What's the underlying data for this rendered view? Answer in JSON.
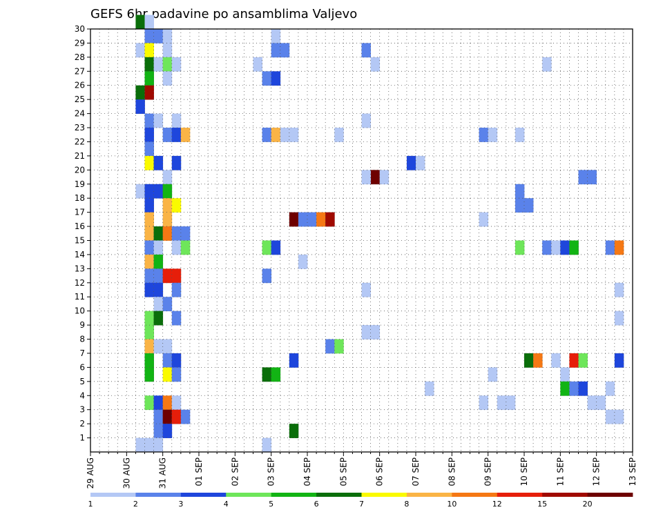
{
  "chart_data": {
    "type": "heatmap",
    "title": "GEFS 6hr padavine po ansamblima Valjevo",
    "x_ticks": [
      "29 AUG",
      "30 AUG",
      "31 AUG",
      "01 SEP",
      "02 SEP",
      "03 SEP",
      "04 SEP",
      "05 SEP",
      "06 SEP",
      "07 SEP",
      "08 SEP",
      "09 SEP",
      "10 SEP",
      "11 SEP",
      "12 SEP",
      "13 SEP"
    ],
    "y_ticks": [
      "1",
      "2",
      "3",
      "4",
      "5",
      "6",
      "7",
      "8",
      "9",
      "10",
      "11",
      "12",
      "13",
      "14",
      "15",
      "16",
      "17",
      "18",
      "19",
      "20",
      "21",
      "22",
      "23",
      "24",
      "25",
      "26",
      "27",
      "28",
      "29",
      "30"
    ],
    "xlim": [
      0,
      60
    ],
    "ylim": [
      0,
      30
    ],
    "grid": true,
    "colorbar": {
      "labels": [
        "1",
        "2",
        "3",
        "4",
        "5",
        "6",
        "7",
        "8",
        "10",
        "12",
        "15",
        "20"
      ],
      "colors": [
        "#b4c8f5",
        "#5a82ea",
        "#1e46dc",
        "#6ee65a",
        "#12b414",
        "#0a6e0a",
        "#fafa00",
        "#fab446",
        "#f57814",
        "#e61e0a",
        "#a00a00",
        "#6e0000"
      ]
    },
    "cells_note": "step index (6h steps from 29 AUG 00z), member, colour class index",
    "cells": [
      [
        5,
        30,
        6
      ],
      [
        6,
        30,
        1
      ],
      [
        6,
        29,
        2
      ],
      [
        7,
        29,
        2
      ],
      [
        8,
        29,
        1
      ],
      [
        5,
        28,
        1
      ],
      [
        6,
        28,
        7
      ],
      [
        8,
        28,
        1
      ],
      [
        6,
        27,
        6
      ],
      [
        7,
        27,
        1
      ],
      [
        8,
        27,
        4
      ],
      [
        9,
        27,
        1
      ],
      [
        6,
        26,
        5
      ],
      [
        8,
        26,
        1
      ],
      [
        5,
        25,
        6
      ],
      [
        6,
        25,
        11
      ],
      [
        5,
        24,
        3
      ],
      [
        6,
        23,
        2
      ],
      [
        7,
        23,
        1
      ],
      [
        9,
        23,
        1
      ],
      [
        6,
        22,
        3
      ],
      [
        8,
        22,
        2
      ],
      [
        9,
        22,
        3
      ],
      [
        10,
        22,
        8
      ],
      [
        6,
        21,
        2
      ],
      [
        6,
        20,
        7
      ],
      [
        7,
        20,
        3
      ],
      [
        9,
        20,
        3
      ],
      [
        8,
        19,
        1
      ],
      [
        5,
        18,
        1
      ],
      [
        6,
        18,
        3
      ],
      [
        7,
        18,
        3
      ],
      [
        8,
        18,
        5
      ],
      [
        6,
        17,
        3
      ],
      [
        8,
        17,
        8
      ],
      [
        9,
        17,
        7
      ],
      [
        6,
        16,
        8
      ],
      [
        8,
        16,
        8
      ],
      [
        6,
        15,
        8
      ],
      [
        7,
        15,
        6
      ],
      [
        8,
        15,
        9
      ],
      [
        9,
        15,
        2
      ],
      [
        10,
        15,
        2
      ],
      [
        6,
        14,
        2
      ],
      [
        7,
        14,
        1
      ],
      [
        9,
        14,
        1
      ],
      [
        10,
        14,
        4
      ],
      [
        6,
        13,
        8
      ],
      [
        7,
        13,
        5
      ],
      [
        6,
        12,
        2
      ],
      [
        7,
        12,
        2
      ],
      [
        8,
        12,
        10
      ],
      [
        9,
        12,
        10
      ],
      [
        6,
        11,
        3
      ],
      [
        7,
        11,
        3
      ],
      [
        9,
        11,
        2
      ],
      [
        7,
        10,
        1
      ],
      [
        8,
        10,
        2
      ],
      [
        6,
        9,
        4
      ],
      [
        7,
        9,
        6
      ],
      [
        9,
        9,
        2
      ],
      [
        6,
        8,
        4
      ],
      [
        6,
        7,
        8
      ],
      [
        7,
        7,
        1
      ],
      [
        8,
        7,
        1
      ],
      [
        6,
        6,
        5
      ],
      [
        8,
        6,
        2
      ],
      [
        9,
        6,
        3
      ],
      [
        6,
        5,
        5
      ],
      [
        8,
        5,
        7
      ],
      [
        9,
        5,
        2
      ],
      [
        6,
        3,
        4
      ],
      [
        7,
        3,
        3
      ],
      [
        8,
        3,
        9
      ],
      [
        9,
        3,
        1
      ],
      [
        7,
        2,
        2
      ],
      [
        8,
        2,
        12
      ],
      [
        9,
        2,
        10
      ],
      [
        10,
        2,
        2
      ],
      [
        7,
        1,
        2
      ],
      [
        8,
        1,
        3
      ],
      [
        5,
        0,
        1
      ],
      [
        6,
        0,
        1
      ],
      [
        7,
        0,
        1
      ],
      [
        20,
        29,
        1
      ],
      [
        20,
        28,
        2
      ],
      [
        21,
        28,
        2
      ],
      [
        18,
        27,
        1
      ],
      [
        19,
        26,
        2
      ],
      [
        20,
        26,
        3
      ],
      [
        19,
        22,
        2
      ],
      [
        20,
        22,
        8
      ],
      [
        21,
        22,
        1
      ],
      [
        22,
        22,
        1
      ],
      [
        22,
        16,
        12
      ],
      [
        23,
        16,
        2
      ],
      [
        24,
        16,
        2
      ],
      [
        25,
        16,
        9
      ],
      [
        26,
        16,
        11
      ],
      [
        19,
        14,
        4
      ],
      [
        20,
        14,
        3
      ],
      [
        23,
        13,
        1
      ],
      [
        19,
        12,
        2
      ],
      [
        26,
        7,
        2
      ],
      [
        27,
        7,
        4
      ],
      [
        22,
        6,
        3
      ],
      [
        19,
        5,
        6
      ],
      [
        20,
        5,
        5
      ],
      [
        22,
        1,
        6
      ],
      [
        19,
        0,
        1
      ],
      [
        30,
        28,
        2
      ],
      [
        31,
        27,
        1
      ],
      [
        30,
        23,
        1
      ],
      [
        27,
        22,
        1
      ],
      [
        31,
        19,
        12
      ],
      [
        30,
        19,
        1
      ],
      [
        32,
        19,
        1
      ],
      [
        30,
        11,
        1
      ],
      [
        30,
        8,
        1
      ],
      [
        31,
        8,
        1
      ],
      [
        35,
        20,
        3
      ],
      [
        36,
        20,
        1
      ],
      [
        37,
        4,
        1
      ],
      [
        43,
        22,
        2
      ],
      [
        44,
        22,
        1
      ],
      [
        47,
        22,
        1
      ],
      [
        43,
        16,
        1
      ],
      [
        44,
        5,
        1
      ],
      [
        43,
        3,
        1
      ],
      [
        45,
        3,
        1
      ],
      [
        46,
        3,
        1
      ],
      [
        50,
        27,
        1
      ],
      [
        47,
        18,
        2
      ],
      [
        47,
        17,
        2
      ],
      [
        48,
        17,
        2
      ],
      [
        47,
        14,
        4
      ],
      [
        50,
        14,
        2
      ],
      [
        51,
        14,
        1
      ],
      [
        52,
        14,
        3
      ],
      [
        53,
        14,
        5
      ],
      [
        48,
        6,
        6
      ],
      [
        49,
        6,
        9
      ],
      [
        51,
        6,
        1
      ],
      [
        53,
        6,
        10
      ],
      [
        54,
        6,
        4
      ],
      [
        52,
        5,
        1
      ],
      [
        52,
        4,
        5
      ],
      [
        53,
        4,
        2
      ],
      [
        54,
        4,
        3
      ],
      [
        54,
        19,
        2
      ],
      [
        55,
        19,
        2
      ],
      [
        57,
        14,
        2
      ],
      [
        58,
        14,
        9
      ],
      [
        58,
        11,
        1
      ],
      [
        58,
        9,
        1
      ],
      [
        58,
        6,
        3
      ],
      [
        57,
        4,
        1
      ],
      [
        55,
        3,
        1
      ],
      [
        56,
        3,
        1
      ],
      [
        57,
        2,
        1
      ],
      [
        58,
        2,
        1
      ]
    ]
  }
}
